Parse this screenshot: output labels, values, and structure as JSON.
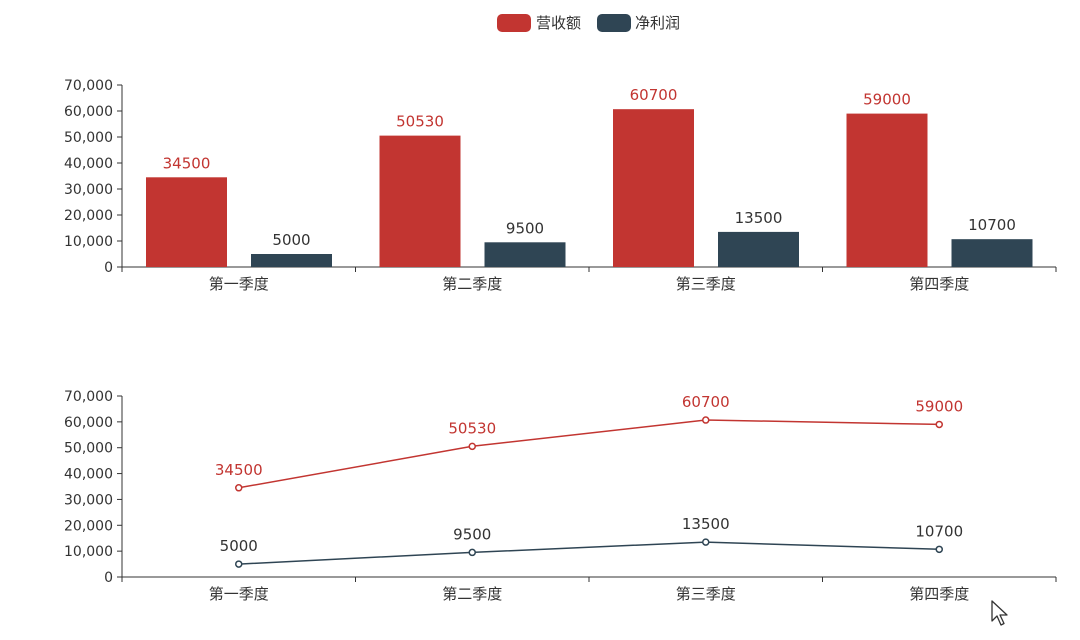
{
  "colors": {
    "revenue": "#c23531",
    "profit": "#2f4554",
    "axis": "#333333",
    "background": "#ffffff"
  },
  "legend": {
    "items": [
      {
        "label": "营收额",
        "color": "#c23531"
      },
      {
        "label": "净利润",
        "color": "#2f4554"
      }
    ]
  },
  "chart_data": [
    {
      "type": "bar",
      "categories": [
        "第一季度",
        "第二季度",
        "第三季度",
        "第四季度"
      ],
      "series": [
        {
          "name": "营收额",
          "values": [
            34500,
            50530,
            60700,
            59000
          ],
          "color": "#c23531"
        },
        {
          "name": "净利润",
          "values": [
            5000,
            9500,
            13500,
            10700
          ],
          "color": "#2f4554"
        }
      ],
      "ylim": [
        0,
        70000
      ],
      "yticks": [
        0,
        10000,
        20000,
        30000,
        40000,
        50000,
        60000,
        70000
      ],
      "ytick_labels": [
        "0",
        "10,000",
        "20,000",
        "30,000",
        "40,000",
        "50,000",
        "60,000",
        "70,000"
      ],
      "grid": false,
      "legend_position": "top-center"
    },
    {
      "type": "line",
      "categories": [
        "第一季度",
        "第二季度",
        "第三季度",
        "第四季度"
      ],
      "series": [
        {
          "name": "营收额",
          "values": [
            34500,
            50530,
            60700,
            59000
          ],
          "color": "#c23531"
        },
        {
          "name": "净利润",
          "values": [
            5000,
            9500,
            13500,
            10700
          ],
          "color": "#2f4554"
        }
      ],
      "ylim": [
        0,
        70000
      ],
      "yticks": [
        0,
        10000,
        20000,
        30000,
        40000,
        50000,
        60000,
        70000
      ],
      "ytick_labels": [
        "0",
        "10,000",
        "20,000",
        "30,000",
        "40,000",
        "50,000",
        "60,000",
        "70,000"
      ],
      "grid": false
    }
  ],
  "cursor_icon": "mouse-pointer-icon"
}
